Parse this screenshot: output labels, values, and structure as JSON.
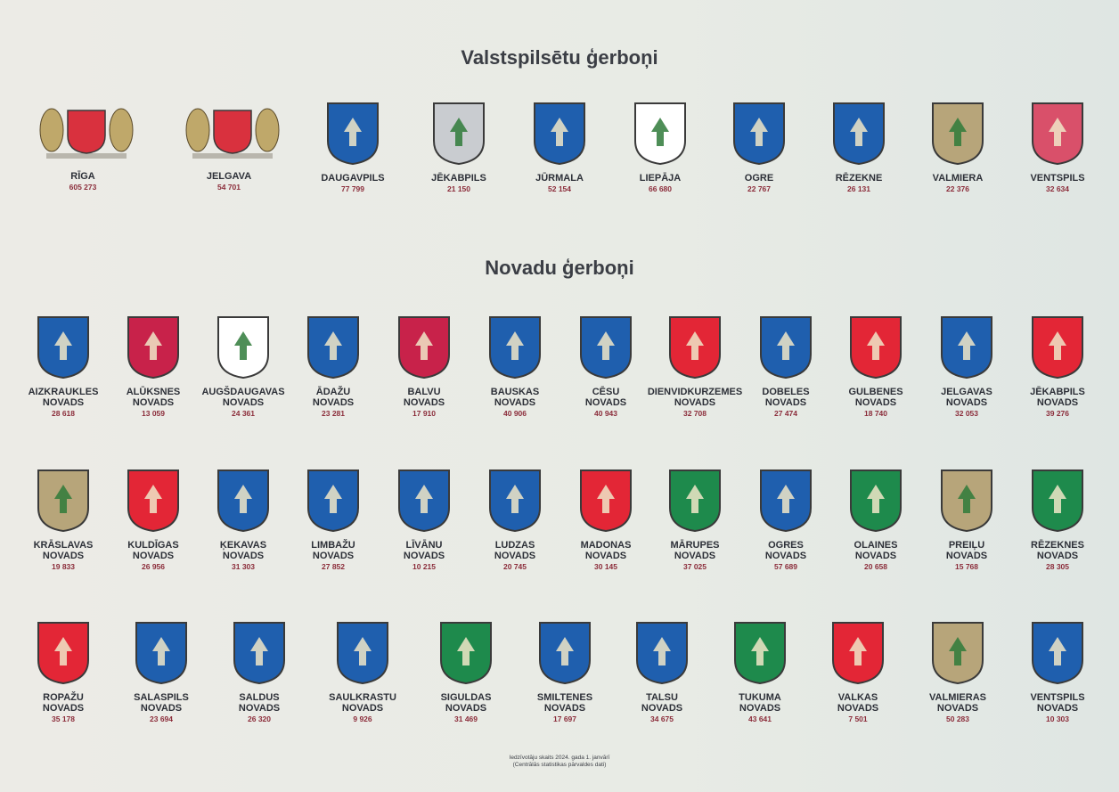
{
  "heading_cities": "Valstspilsētu ģerboņi",
  "heading_regions": "Novadu ģerboņi",
  "cities": [
    {
      "name": "RĪGA",
      "population": "605 273",
      "icon": "riga-coat-of-arms",
      "color": "#d9313e"
    },
    {
      "name": "JELGAVA",
      "population": "54 701",
      "icon": "jelgava-coat-of-arms",
      "color": "#d9313e"
    },
    {
      "name": "DAUGAVPILS",
      "population": "77 799",
      "icon": "fleur-de-lis-shield",
      "color": "#1f5fae"
    },
    {
      "name": "JĒKABPILS",
      "population": "21 150",
      "icon": "fir-tree-shield",
      "color": "#c9ccd0"
    },
    {
      "name": "JŪRMALA",
      "population": "52 154",
      "icon": "stars-waves-shield",
      "color": "#1f5fae"
    },
    {
      "name": "LIEPĀJA",
      "population": "66 680",
      "icon": "lion-linden-shield",
      "color": "#ffffff"
    },
    {
      "name": "OGRE",
      "population": "22 767",
      "icon": "pine-trees-shield",
      "color": "#1f5fae"
    },
    {
      "name": "RĒZEKNE",
      "population": "26 131",
      "icon": "griffin-shield",
      "color": "#1f5fae"
    },
    {
      "name": "VALMIERA",
      "population": "22 376",
      "icon": "tree-shield",
      "color": "#b7a57a"
    },
    {
      "name": "VENTSPILS",
      "population": "32 634",
      "icon": "cross-pattern-shield",
      "color": "#d9506a"
    }
  ],
  "rows": [
    [
      {
        "line1": "AIZKRAUKLES",
        "line2": "NOVADS",
        "population": "28 618",
        "icon": "oak-leaves-shield",
        "color": "#1f5fae"
      },
      {
        "line1": "ALŪKSNES",
        "line2": "NOVADS",
        "population": "13 059",
        "icon": "book-shield",
        "color": "#c8224a"
      },
      {
        "line1": "AUGŠDAUGAVAS",
        "line2": "NOVADS",
        "population": "24 361",
        "icon": "tree-shield",
        "color": "#ffffff"
      },
      {
        "line1": "ĀDAŽU",
        "line2": "NOVADS",
        "population": "23 281",
        "icon": "chevron-shield",
        "color": "#1f5fae"
      },
      {
        "line1": "BALVU",
        "line2": "NOVADS",
        "population": "17 910",
        "icon": "wolf-shield",
        "color": "#c8224a"
      },
      {
        "line1": "BAUSKAS",
        "line2": "NOVADS",
        "population": "40 906",
        "icon": "chevron-shield",
        "color": "#1f5fae"
      },
      {
        "line1": "CĒSU",
        "line2": "NOVADS",
        "population": "40 943",
        "icon": "knight-shield",
        "color": "#1f5fae"
      },
      {
        "line1": "DIENVIDKURZEMES",
        "line2": "NOVADS",
        "population": "32 708",
        "icon": "lion-shield",
        "color": "#e32636"
      },
      {
        "line1": "DOBELES",
        "line2": "NOVADS",
        "population": "27 474",
        "icon": "castle-shield",
        "color": "#1f5fae"
      },
      {
        "line1": "GULBENES",
        "line2": "NOVADS",
        "population": "18 740",
        "icon": "swans-shield",
        "color": "#e32636"
      },
      {
        "line1": "JELGAVAS",
        "line2": "NOVADS",
        "population": "32 053",
        "icon": "elk-shield",
        "color": "#1f5fae"
      },
      {
        "line1": "JĒKABPILS",
        "line2": "NOVADS",
        "population": "39 276",
        "icon": "fir-tree-shield",
        "color": "#e32636"
      }
    ],
    [
      {
        "line1": "KRĀSLAVAS",
        "line2": "NOVADS",
        "population": "19 833",
        "icon": "stripes-shield",
        "color": "#b7a57a"
      },
      {
        "line1": "KULDĪGAS",
        "line2": "NOVADS",
        "population": "26 956",
        "icon": "saint-shield",
        "color": "#e32636"
      },
      {
        "line1": "ĶEKAVAS",
        "line2": "NOVADS",
        "population": "31 303",
        "icon": "stars-diagonal-shield",
        "color": "#1f5fae"
      },
      {
        "line1": "LIMBAŽU",
        "line2": "NOVADS",
        "population": "27 852",
        "icon": "ship-castle-shield",
        "color": "#1f5fae"
      },
      {
        "line1": "LĪVĀNU",
        "line2": "NOVADS",
        "population": "10 215",
        "icon": "bird-shield",
        "color": "#1f5fae"
      },
      {
        "line1": "LUDZAS",
        "line2": "NOVADS",
        "population": "20 745",
        "icon": "sword-key-shield",
        "color": "#1f5fae"
      },
      {
        "line1": "MADONAS",
        "line2": "NOVADS",
        "population": "30 145",
        "icon": "elk-shield",
        "color": "#e32636"
      },
      {
        "line1": "MĀRUPES",
        "line2": "NOVADS",
        "population": "37 025",
        "icon": "hoopoe-shield",
        "color": "#1e8a4c"
      },
      {
        "line1": "OGRES",
        "line2": "NOVADS",
        "population": "57 689",
        "icon": "pine-trees-shield",
        "color": "#1f5fae"
      },
      {
        "line1": "OLAINES",
        "line2": "NOVADS",
        "population": "20 658",
        "icon": "drops-shield",
        "color": "#1e8a4c"
      },
      {
        "line1": "PREIĻU",
        "line2": "NOVADS",
        "population": "15 768",
        "icon": "raven-shield",
        "color": "#b7a57a"
      },
      {
        "line1": "RĒZEKNES",
        "line2": "NOVADS",
        "population": "28 305",
        "icon": "wheat-shield",
        "color": "#1e8a4c"
      }
    ],
    [
      {
        "line1": "ROPAŽU",
        "line2": "NOVADS",
        "population": "35 178",
        "icon": "braid-shield",
        "color": "#e32636"
      },
      {
        "line1": "SALASPILS",
        "line2": "NOVADS",
        "population": "23 694",
        "icon": "gate-shield",
        "color": "#1f5fae"
      },
      {
        "line1": "SALDUS",
        "line2": "NOVADS",
        "population": "26 320",
        "icon": "flower-shield",
        "color": "#1f5fae"
      },
      {
        "line1": "SAULKRASTU",
        "line2": "NOVADS",
        "population": "9 926",
        "icon": "sun-shield",
        "color": "#1f5fae"
      },
      {
        "line1": "SIGULDAS",
        "line2": "NOVADS",
        "population": "31 469",
        "icon": "leaf-shield",
        "color": "#1e8a4c"
      },
      {
        "line1": "SMILTENES",
        "line2": "NOVADS",
        "population": "17 697",
        "icon": "fleur-de-lis-shield",
        "color": "#1f5fae"
      },
      {
        "line1": "TALSU",
        "line2": "NOVADS",
        "population": "34 675",
        "icon": "wreath-shield",
        "color": "#1f5fae"
      },
      {
        "line1": "TUKUMA",
        "line2": "NOVADS",
        "population": "43 641",
        "icon": "rose-shield",
        "color": "#1e8a4c"
      },
      {
        "line1": "VALKAS",
        "line2": "NOVADS",
        "population": "7 501",
        "icon": "lion-shield",
        "color": "#e32636"
      },
      {
        "line1": "VALMIERAS",
        "line2": "NOVADS",
        "population": "50 283",
        "icon": "tree-shield",
        "color": "#b7a57a"
      },
      {
        "line1": "VENTSPILS",
        "line2": "NOVADS",
        "population": "10 303",
        "icon": "boat-shield",
        "color": "#1f5fae"
      }
    ]
  ],
  "footer_line1": "Iedzīvotāju skaits 2024. gada 1. janvārī",
  "footer_line2": "(Centrālās statistikas pārvaldes dati)"
}
